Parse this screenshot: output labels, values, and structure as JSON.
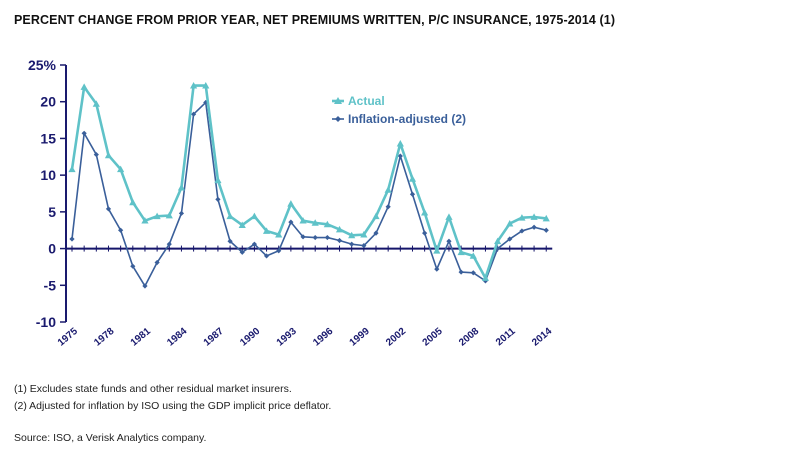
{
  "title": "PERCENT CHANGE FROM PRIOR YEAR, NET PREMIUMS WRITTEN, P/C INSURANCE, 1975-2014 (1)",
  "footnotes": [
    "(1) Excludes state funds and other residual market insurers.",
    "(2) Adjusted for inflation by ISO using the GDP implicit price deflator."
  ],
  "source": "Source: ISO, a Verisk Analytics company.",
  "colors": {
    "actual": "#5fc2c8",
    "inflation": "#3a5f9a",
    "axis": "#1a1a6e",
    "zero_line": "#15156a"
  },
  "chart_data": {
    "type": "line",
    "title": "PERCENT CHANGE FROM PRIOR YEAR, NET PREMIUMS WRITTEN, P/C INSURANCE, 1975-2014 (1)",
    "xlabel": "",
    "ylabel": "",
    "ylim": [
      -10,
      25
    ],
    "yticks": [
      25,
      20,
      15,
      10,
      5,
      0,
      -5,
      -10
    ],
    "ytick_labels": [
      "25%",
      "20",
      "15",
      "10",
      "5",
      "0",
      "-5",
      "-10"
    ],
    "x": [
      1975,
      1976,
      1977,
      1978,
      1979,
      1980,
      1981,
      1982,
      1983,
      1984,
      1985,
      1986,
      1987,
      1988,
      1989,
      1990,
      1991,
      1992,
      1993,
      1994,
      1995,
      1996,
      1997,
      1998,
      1999,
      2000,
      2001,
      2002,
      2003,
      2004,
      2005,
      2006,
      2007,
      2008,
      2009,
      2010,
      2011,
      2012,
      2013,
      2014
    ],
    "xtick_labels": [
      "1975",
      "1978",
      "1981",
      "1984",
      "1987",
      "1990",
      "1993",
      "1996",
      "1999",
      "2002",
      "2005",
      "2008",
      "2011",
      "2014"
    ],
    "legend_position": "top-center",
    "series": [
      {
        "name": "Actual",
        "marker": "triangle",
        "values": [
          10.8,
          22.0,
          19.7,
          12.7,
          10.8,
          6.3,
          3.8,
          4.4,
          4.5,
          8.3,
          22.2,
          22.2,
          9.3,
          4.4,
          3.2,
          4.4,
          2.4,
          1.9,
          6.1,
          3.8,
          3.5,
          3.3,
          2.6,
          1.8,
          1.9,
          4.4,
          8.0,
          14.3,
          9.5,
          4.9,
          -0.3,
          4.3,
          -0.5,
          -1.0,
          -4.0,
          1.0,
          3.4,
          4.2,
          4.3,
          4.1
        ]
      },
      {
        "name": "Inflation-adjusted (2)",
        "marker": "diamond",
        "values": [
          1.3,
          15.7,
          12.8,
          5.4,
          2.5,
          -2.4,
          -5.1,
          -1.9,
          0.6,
          4.8,
          18.3,
          19.9,
          6.7,
          1.0,
          -0.5,
          0.6,
          -1.0,
          -0.3,
          3.6,
          1.6,
          1.5,
          1.5,
          1.1,
          0.6,
          0.4,
          2.1,
          5.7,
          12.6,
          7.4,
          2.1,
          -2.8,
          1.0,
          -3.2,
          -3.3,
          -4.4,
          0.0,
          1.3,
          2.4,
          2.9,
          2.5
        ]
      }
    ]
  }
}
